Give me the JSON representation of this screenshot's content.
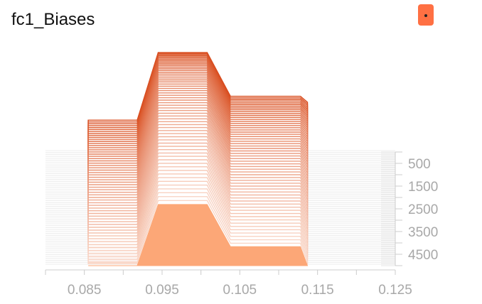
{
  "header": {
    "title": "fc1_Biases"
  },
  "colors": {
    "accent": "#ff7043",
    "front_fill": "#fca777",
    "dark_line": "#d84a1b",
    "pale_line": "#ececec",
    "axis": "#cccccc",
    "tick_text": "#a8a8a8"
  },
  "chart_data": {
    "type": "area",
    "title": "fc1_Biases",
    "xlabel": "",
    "ylabel": "",
    "x_ticks": [
      "0.085",
      "0.095",
      "0.105",
      "0.115",
      "0.125"
    ],
    "x_range": [
      0.08,
      0.125
    ],
    "step_ticks": [
      "500",
      "1500",
      "2500",
      "3500",
      "4500"
    ],
    "step_range": [
      0,
      5000
    ],
    "step_offset_direction": "back rows shifted up",
    "front_histogram": {
      "x": [
        0.0855,
        0.0918,
        0.0945,
        0.1008,
        0.1038,
        0.1128,
        0.1137
      ],
      "density": [
        0,
        0,
        0.29,
        0.29,
        0.09,
        0.09,
        0
      ]
    },
    "back_histogram": {
      "x": [
        0.0855,
        0.0918,
        0.0945,
        0.1008,
        0.1038,
        0.1128,
        0.1137
      ],
      "density": [
        0.32,
        0.32,
        1.0,
        1.0,
        0.56,
        0.56,
        0.5
      ]
    },
    "grid": false,
    "legend": "none"
  }
}
